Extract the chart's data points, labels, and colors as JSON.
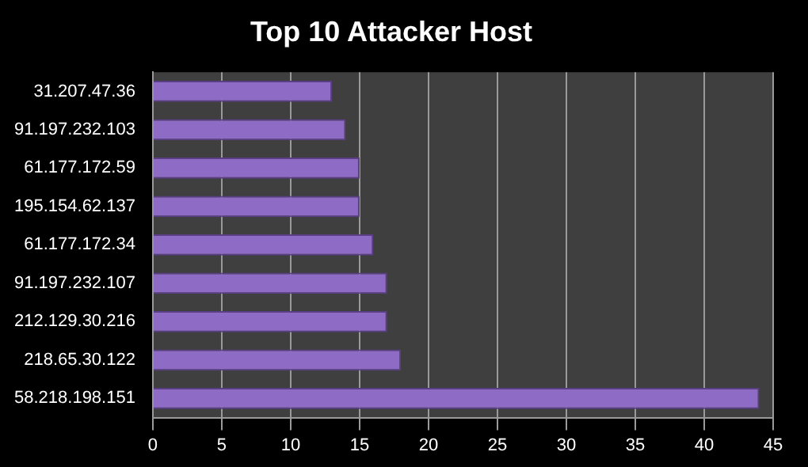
{
  "chart_data": {
    "type": "bar",
    "orientation": "horizontal",
    "title": "Top 10 Attacker Host",
    "categories": [
      "31.207.47.36",
      "91.197.232.103",
      "61.177.172.59",
      "195.154.62.137",
      "61.177.172.34",
      "91.197.232.107",
      "212.129.30.216",
      "218.65.30.122",
      "58.218.198.151"
    ],
    "values": [
      13,
      14,
      15,
      15,
      16,
      17,
      17,
      18,
      44
    ],
    "color": "#8e6bc4",
    "xlim": [
      0,
      45
    ],
    "xticks": [
      0,
      5,
      10,
      15,
      20,
      25,
      30,
      35,
      40,
      45
    ],
    "grid": "x",
    "legend": false
  }
}
